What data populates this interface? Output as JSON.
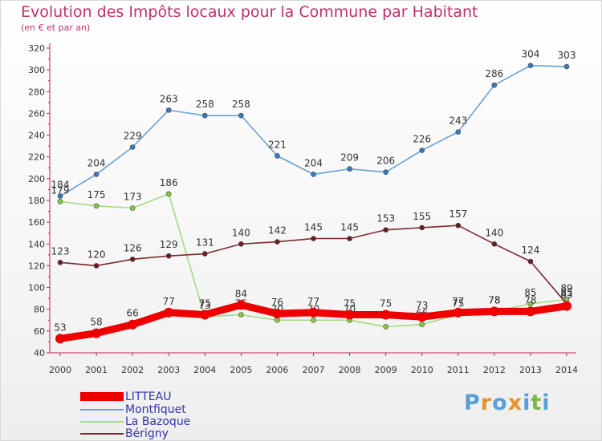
{
  "header": {
    "title": "Evolution des Impôts locaux pour la Commune par Habitant",
    "subtitle": "(en € et par an)"
  },
  "logo": {
    "text": "Proxiti",
    "colors": [
      "#5aa0d8",
      "#e8932e",
      "#5aa0d8",
      "#e8932e",
      "#5aa0d8",
      "#79b843",
      "#5aa0d8"
    ]
  },
  "chart_data": {
    "type": "line",
    "x": [
      "2000",
      "2001",
      "2002",
      "2003",
      "2004",
      "2005",
      "2006",
      "2007",
      "2008",
      "2009",
      "2010",
      "2011",
      "2012",
      "2013",
      "2014"
    ],
    "ylim": [
      40,
      320
    ],
    "yticks": [
      40,
      60,
      80,
      100,
      120,
      140,
      160,
      180,
      200,
      220,
      240,
      260,
      280,
      300,
      320
    ],
    "grid": false,
    "legend_position": "bottom-left",
    "series": [
      {
        "name": "Montfiquet",
        "color": "#6aa0d4",
        "marker": "#3a78c0",
        "values": [
          184,
          204,
          229,
          263,
          258,
          258,
          221,
          204,
          209,
          206,
          226,
          243,
          286,
          304,
          303
        ]
      },
      {
        "name": "La Bazoque",
        "color": "#a4dc80",
        "marker": "#86c846",
        "values": [
          179,
          175,
          173,
          186,
          73,
          75,
          70,
          70,
          70,
          64,
          66,
          75,
          78,
          85,
          89
        ]
      },
      {
        "name": "Bérigny",
        "color": "#7a2a30",
        "marker": "#6a1c24",
        "values": [
          123,
          120,
          126,
          129,
          131,
          140,
          142,
          145,
          145,
          153,
          155,
          157,
          140,
          124,
          85
        ]
      },
      {
        "name": "LITTEAU",
        "color": "#ee0000",
        "marker": "#ee0000",
        "values": [
          53,
          58,
          66,
          77,
          75,
          84,
          76,
          77,
          75,
          75,
          73,
          77,
          78,
          78,
          83
        ]
      }
    ],
    "data_labels": {
      "Montfiquet": [
        "184",
        "204",
        "229",
        "263",
        "258",
        "258",
        "221",
        "204",
        "209",
        "206",
        "226",
        "243",
        "286",
        "304",
        "303"
      ],
      "La Bazoque": [
        "179",
        "175",
        "173",
        "186",
        "73",
        "75",
        "70",
        "70",
        "70",
        "64",
        "66",
        "75",
        "78",
        "85",
        "89"
      ],
      "Bérigny": [
        "123",
        "120",
        "126",
        "129",
        "131",
        "140",
        "142",
        "145",
        "145",
        "153",
        "155",
        "157",
        "140",
        "124",
        "85"
      ],
      "LITTEAU": [
        "53",
        "58",
        "66",
        "77",
        "75",
        "84",
        "76",
        "77",
        "75",
        "75",
        "73",
        "77",
        "78",
        "78",
        "83"
      ]
    }
  },
  "legend": [
    {
      "name": "LITTEAU",
      "color": "#ee0000"
    },
    {
      "name": "Montfiquet",
      "color": "#6aa0d4"
    },
    {
      "name": "La Bazoque",
      "color": "#a4dc80"
    },
    {
      "name": "Bérigny",
      "color": "#7a2a30"
    }
  ]
}
